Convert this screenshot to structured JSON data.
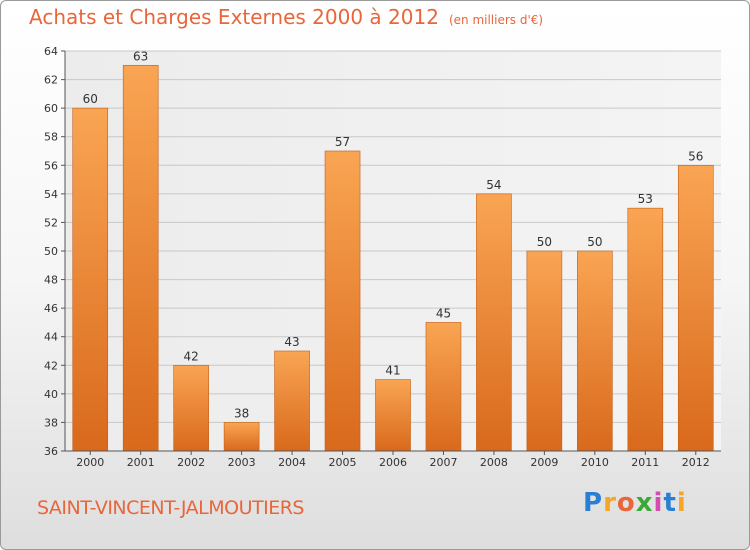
{
  "header": {
    "title": "Achats et Charges Externes 2000 à 2012",
    "subtitle": "(en milliers d'€)"
  },
  "footer": {
    "commune": "SAINT-VINCENT-JALMOUTIERS",
    "logo_text": "Proxiti",
    "logo_letter_colors": [
      "#2a7fd4",
      "#f5a623",
      "#e8663a",
      "#3aaa35",
      "#d64bb0",
      "#2a7fd4",
      "#f5a623"
    ]
  },
  "chart_data": {
    "type": "bar",
    "categories": [
      "2000",
      "2001",
      "2002",
      "2003",
      "2004",
      "2005",
      "2006",
      "2007",
      "2008",
      "2009",
      "2010",
      "2011",
      "2012"
    ],
    "values": [
      60,
      63,
      42,
      38,
      43,
      57,
      41,
      45,
      54,
      50,
      50,
      53,
      56
    ],
    "ylim": [
      36,
      64
    ],
    "yticks": [
      36,
      38,
      40,
      42,
      44,
      46,
      48,
      50,
      52,
      54,
      56,
      58,
      60,
      62,
      64
    ],
    "grid": true,
    "bar_color": "#f0883a"
  }
}
